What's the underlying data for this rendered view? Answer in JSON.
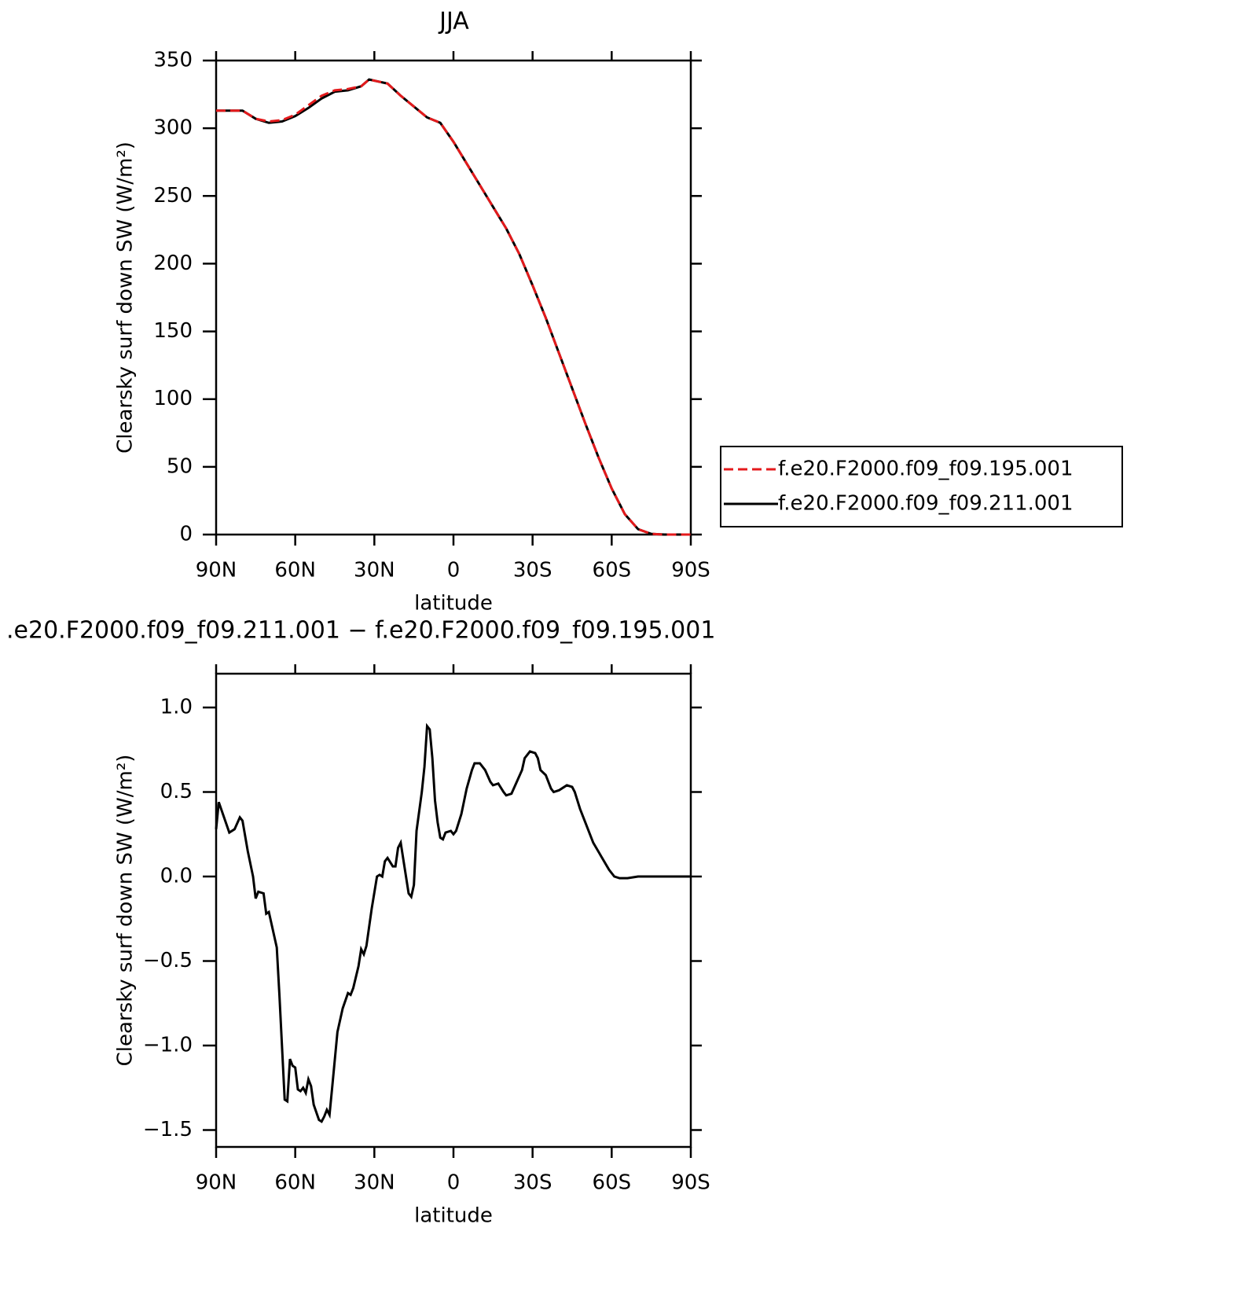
{
  "chart_data": [
    {
      "type": "line",
      "title": "JJA",
      "ylabel": "Clearsky surf down SW (W/m²)",
      "xlabel": "latitude",
      "x": [
        90,
        85,
        80,
        75,
        70,
        65,
        60,
        55,
        50,
        45,
        40,
        35,
        32,
        25,
        20,
        15,
        10,
        5,
        0,
        -5,
        -10,
        -15,
        -20,
        -25,
        -30,
        -35,
        -40,
        -45,
        -50,
        -55,
        -60,
        -65,
        -70,
        -75,
        -80,
        -85,
        -90
      ],
      "series": [
        {
          "name": "f.e20.F2000.f09_f09.195.001",
          "color": "#e41a1c",
          "dashed": true,
          "values": [
            313,
            313,
            313,
            307,
            305,
            306,
            310,
            317,
            324,
            328,
            329,
            331,
            336,
            333,
            324,
            316,
            308,
            304,
            290,
            274,
            258,
            242,
            226,
            207,
            184,
            160,
            134,
            108,
            82,
            57,
            34,
            15,
            4,
            0.5,
            0,
            0,
            0
          ]
        },
        {
          "name": "f.e20.F2000.f09_f09.211.001",
          "color": "#000000",
          "dashed": false,
          "values": [
            313,
            313,
            313,
            307,
            304,
            305,
            309,
            315,
            322,
            327,
            328,
            331,
            336,
            333,
            324,
            316,
            308,
            304,
            290,
            274,
            258,
            242,
            226,
            207,
            184,
            160,
            134,
            108,
            82,
            57,
            34,
            15,
            4,
            0.5,
            0,
            0,
            0
          ]
        }
      ],
      "xlim": [
        90,
        -90
      ],
      "xticks": [
        {
          "value": 90,
          "label": "90N"
        },
        {
          "value": 60,
          "label": "60N"
        },
        {
          "value": 30,
          "label": "30N"
        },
        0,
        {
          "value": -30,
          "label": "30S"
        },
        {
          "value": -60,
          "label": "60S"
        },
        {
          "value": -90,
          "label": "90S"
        }
      ],
      "ylim": [
        0,
        350
      ],
      "yticks": [
        0,
        50,
        100,
        150,
        200,
        250,
        300,
        350
      ],
      "legend": "right"
    },
    {
      "type": "line",
      "title": ".e20.F2000.f09_f09.211.001 − f.e20.F2000.f09_f09.195.001",
      "ylabel": "Clearsky surf down SW (W/m²)",
      "xlabel": "latitude",
      "x": [
        90,
        89,
        87,
        85,
        83,
        81,
        80,
        78,
        76,
        75,
        74,
        72,
        71,
        70,
        68,
        67,
        66,
        64,
        63,
        62,
        61,
        60,
        59,
        58,
        57,
        56,
        55,
        54,
        53,
        51,
        50,
        49,
        48,
        47,
        46,
        44,
        42,
        40,
        39,
        38,
        36,
        35,
        34,
        33,
        31,
        29,
        28,
        27,
        26,
        25,
        23,
        22,
        21,
        20,
        19,
        17,
        16,
        15,
        14,
        12,
        11,
        10,
        9,
        8,
        7,
        6,
        5,
        4,
        3,
        1,
        0,
        -1,
        -3,
        -5,
        -7,
        -8,
        -10,
        -12,
        -14,
        -15,
        -17,
        -19,
        -20,
        -22,
        -24,
        -26,
        -27,
        -29,
        -31,
        -32,
        -33,
        -35,
        -37,
        -38,
        -40,
        -42,
        -43,
        -45,
        -46,
        -48,
        -50,
        -53,
        -56,
        -59,
        -61,
        -63,
        -66,
        -70,
        -90
      ],
      "values": [
        0.28,
        0.44,
        0.35,
        0.26,
        0.28,
        0.35,
        0.33,
        0.15,
        0.0,
        -0.13,
        -0.09,
        -0.1,
        -0.22,
        -0.21,
        -0.35,
        -0.42,
        -0.7,
        -1.32,
        -1.33,
        -1.08,
        -1.12,
        -1.13,
        -1.26,
        -1.27,
        -1.25,
        -1.28,
        -1.2,
        -1.24,
        -1.35,
        -1.44,
        -1.45,
        -1.42,
        -1.38,
        -1.41,
        -1.25,
        -0.92,
        -0.78,
        -0.69,
        -0.7,
        -0.66,
        -0.53,
        -0.43,
        -0.46,
        -0.41,
        -0.19,
        0,
        0.01,
        0.0,
        0.09,
        0.11,
        0.06,
        0.06,
        0.17,
        0.2,
        0.1,
        -0.1,
        -0.12,
        -0.05,
        0.27,
        0.5,
        0.65,
        0.89,
        0.87,
        0.7,
        0.45,
        0.32,
        0.23,
        0.22,
        0.26,
        0.27,
        0.25,
        0.27,
        0.37,
        0.52,
        0.63,
        0.67,
        0.67,
        0.63,
        0.56,
        0.54,
        0.55,
        0.5,
        0.48,
        0.49,
        0.56,
        0.63,
        0.7,
        0.74,
        0.73,
        0.7,
        0.63,
        0.6,
        0.52,
        0.5,
        0.51,
        0.53,
        0.54,
        0.53,
        0.5,
        0.4,
        0.32,
        0.2,
        0.12,
        0.04,
        0.0,
        -0.01,
        -0.01,
        0,
        0
      ],
      "color": "#000000",
      "xlim": [
        90,
        -90
      ],
      "xticks": [
        {
          "value": 90,
          "label": "90N"
        },
        {
          "value": 60,
          "label": "60N"
        },
        {
          "value": 30,
          "label": "30N"
        },
        0,
        {
          "value": -30,
          "label": "30S"
        },
        {
          "value": -60,
          "label": "60S"
        },
        {
          "value": -90,
          "label": "90S"
        }
      ],
      "ylim": [
        -1.6,
        1.2
      ],
      "yticks": [
        {
          "value": -1.5,
          "label": "−1.5"
        },
        {
          "value": -1.0,
          "label": "−1.0"
        },
        {
          "value": -0.5,
          "label": "−0.5"
        },
        {
          "value": 0,
          "label": "0.0"
        },
        0.5,
        {
          "value": 1.0,
          "label": "1.0"
        }
      ]
    }
  ]
}
